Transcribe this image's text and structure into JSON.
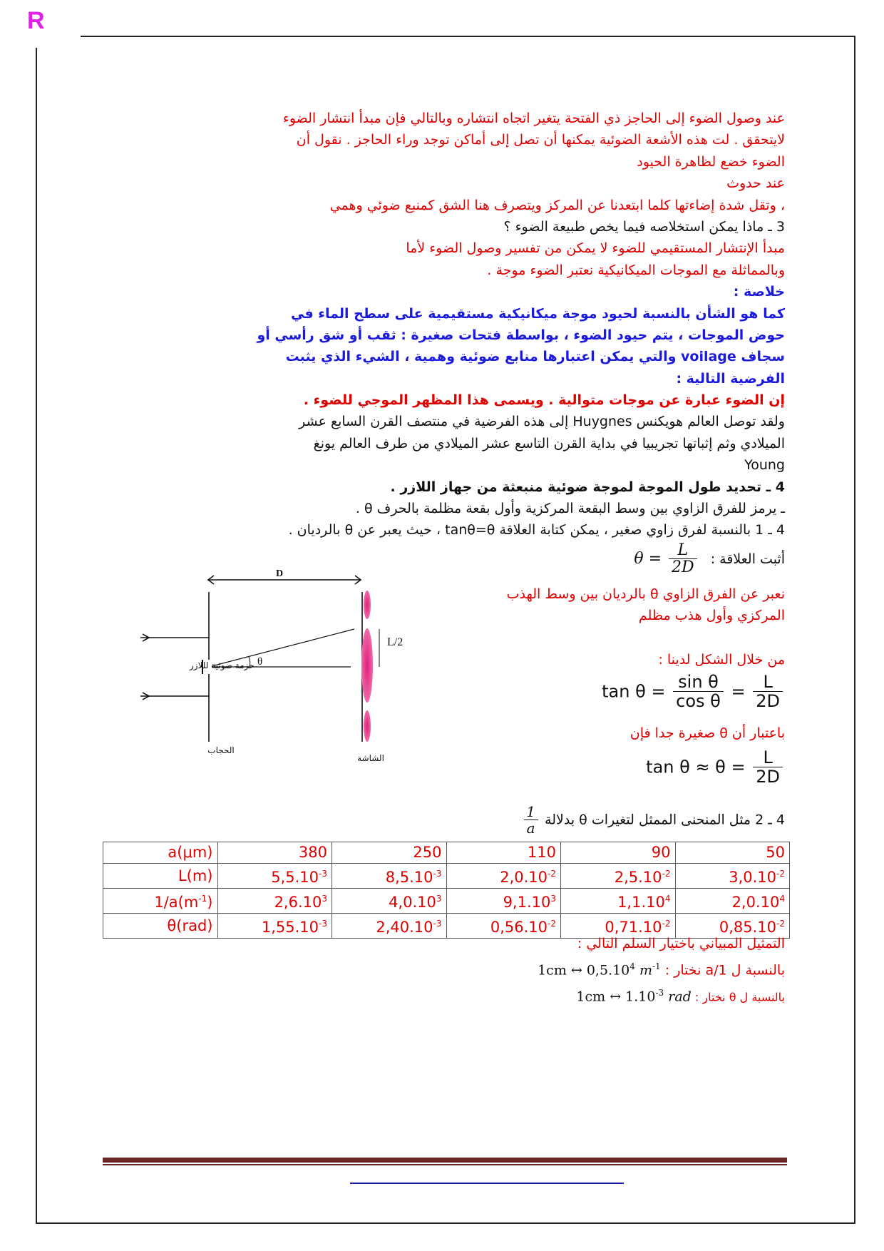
{
  "logo": "R",
  "colors": {
    "red": "#e00000",
    "blue": "#1a1adf",
    "footer_bar": "#6b2626",
    "footer_line": "#1a1aa8",
    "logo": "#e020e8"
  },
  "lines": [
    "عند وصول الضوء إلى الحاجز ذي الفتحة يتغير اتجاه انتشاره وبالتالي فإن مبدأ انتشار الضوء",
    "لايتحقق . لت هذه الأشعة الضوئية يمكنها أن تصل إلى أماكن توجد وراء الحاجز . نقول أن",
    "الضوء خضع لظاهرة الحيود",
    "عند حدوث",
    "، وتقل شدة إضاءتها كلما ابتعدنا عن المركز ويتصرف هنا الشق كمنبع ضوئي وهمي",
    "3 ـ ماذا يمكن استخلاصه فيما يخص طبيعة الضوء ؟",
    "مبدأ الإنتشار المستقيمي للضوء لا يمكن من تفسير وصول الضوء لأما",
    "وبالمماثلة مع الموجات الميكانيكية نعتبر الضوء موجة .",
    "خلاصة :",
    "كما هو الشأن بالنسبة لحيود موجة ميكانيكية مستقيمية على سطح الماء في",
    "حوض الموجات ، يتم حيود الضوء ، بواسطة فتحات صغيرة : ثقب أو شق رأسي أو",
    "سجاف voilage والتي يمكن اعتبارها منابع ضوئية وهمية ، الشيء الذي يثبت",
    "الفرضية التالية :",
    "إن الضوء عبارة عن موجات متوالية . ويسمى هذا المظهر الموجي للضوء .",
    "ولقد توصل العالم هويكنس Huygnes إلى هذه الفرضية في منتصف القرن السابع عشر",
    "الميلادي وثم إثباتها تجريبيا في بداية القرن التاسع عشر الميلادي من طرف العالم يونغ",
    "Young",
    "4 ـ تحديد طول الموجة لموجة ضوئية منبعثة من جهاز اللازر .",
    "ـ يرمز للفرق الزاوي بين وسط البقعة المركزية وأول بقعة مظلمة بالحرف θ .",
    "4 ـ 1 بالنسبة لفرق زاوي صغير ، يمكن كتابة العلاقة tanθ=θ ، حيث يعبر عن θ بالرديان ."
  ],
  "proof": {
    "prompt": "أثبت العلاقة :",
    "formula_lhs": "θ =",
    "formula_num": "L",
    "formula_den": "2D",
    "answer_lines": [
      "نعبر عن الفرق الزاوي θ بالرديان بين وسط الهذب",
      "المركزي وأول هذب مظلم"
    ],
    "from_figure": "من خلال الشكل لدينا :",
    "tan_lhs": "tan θ =",
    "tan_num": "sin θ",
    "tan_den": "cos θ",
    "eq": "=",
    "l_num": "L",
    "l_den": "2D",
    "small_angle": "باعتبار أن θ صغيرة جدا فإن",
    "approx_lhs": "tan θ ≈ θ ="
  },
  "diagram": {
    "D": "D",
    "L_half": "L/2",
    "theta": "θ",
    "beam_label": "حزمة ضوئية لللازر",
    "barrier_label": "الحجاب",
    "screen_label": "الشاشة"
  },
  "q42": {
    "text": "4 ـ 2 مثل المنحنى الممثل لتغيرات θ بدلالة",
    "frac_num": "1",
    "frac_den": "a"
  },
  "table": {
    "rows": [
      {
        "label": "a(μm)",
        "cells": [
          "380",
          "250",
          "110",
          "90",
          "50"
        ]
      },
      {
        "label": "L(m)",
        "cells": [
          [
            "5,5.10",
            "-3"
          ],
          [
            "8,5.10",
            "-3"
          ],
          [
            "2,0.10",
            "-2"
          ],
          [
            "2,5.10",
            "-2"
          ],
          [
            "3,0.10",
            "-2"
          ]
        ]
      },
      {
        "label": [
          "1/a(m",
          "-1",
          ")"
        ],
        "cells": [
          [
            "2,6.10",
            "3"
          ],
          [
            "4,0.10",
            "3"
          ],
          [
            "9,1.10",
            "3"
          ],
          [
            "1,1.10",
            "4"
          ],
          [
            "2,0.10",
            "4"
          ]
        ]
      },
      {
        "label": "θ(rad)",
        "cells": [
          [
            "1,55.10",
            "-3"
          ],
          [
            "2,40.10",
            "-3"
          ],
          [
            "0,56.10",
            "-2"
          ],
          [
            "0,71.10",
            "-2"
          ],
          [
            "0,85.10",
            "-2"
          ]
        ]
      }
    ]
  },
  "scale": {
    "title": "التمثيل المبياني باختيار السلم التالي :",
    "inv_a_label": "بالنسبة ل 1/a نختار :",
    "inv_a_value": "1cm ↔ 0,5.10",
    "inv_a_exp": "4",
    "inv_a_unit": "m",
    "inv_a_unit_exp": "-1",
    "theta_label": "بالنسبة ل θ نختار :",
    "theta_value": "1cm ↔ 1.10",
    "theta_exp": "-3",
    "theta_unit": "rad"
  }
}
